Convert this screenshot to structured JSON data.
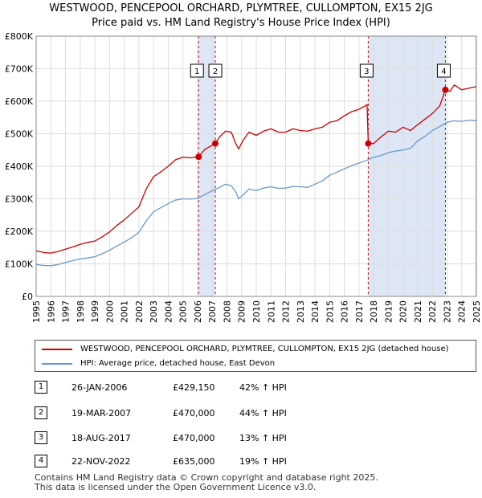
{
  "title_line1": "WESTWOOD, PENCEPOOL ORCHARD, PLYMTREE, CULLOMPTON, EX15 2JG",
  "title_line2": "Price paid vs. HM Land Registry's House Price Index (HPI)",
  "colors": {
    "property": "#cc0000",
    "hpi": "#6699cc",
    "shade": "#dde6f5",
    "vline": "#cc0000"
  },
  "chart_data": {
    "type": "line",
    "title": "Price paid vs. HM Land Registry's House Price Index (HPI)",
    "xlabel": "",
    "ylabel": "",
    "xlim": [
      1995,
      2025
    ],
    "ylim": [
      0,
      800000
    ],
    "yticks": [
      {
        "value": 0,
        "label": "£0"
      },
      {
        "value": 100000,
        "label": "£100K"
      },
      {
        "value": 200000,
        "label": "£200K"
      },
      {
        "value": 300000,
        "label": "£300K"
      },
      {
        "value": 400000,
        "label": "£400K"
      },
      {
        "value": 500000,
        "label": "£500K"
      },
      {
        "value": 600000,
        "label": "£600K"
      },
      {
        "value": 700000,
        "label": "£700K"
      },
      {
        "value": 800000,
        "label": "£800K"
      }
    ],
    "xticks": [
      "1995",
      "1996",
      "1997",
      "1998",
      "1999",
      "2000",
      "2001",
      "2002",
      "2003",
      "2004",
      "2005",
      "2006",
      "2007",
      "2008",
      "2009",
      "2010",
      "2011",
      "2012",
      "2013",
      "2014",
      "2015",
      "2016",
      "2017",
      "2018",
      "2019",
      "2020",
      "2021",
      "2022",
      "2023",
      "2024",
      "2025"
    ],
    "shaded_ranges": [
      [
        2006.07,
        2007.21
      ],
      [
        2017.63,
        2022.89
      ]
    ],
    "series": [
      {
        "name": "WESTWOOD, PENCEPOOL ORCHARD, PLYMTREE, CULLOMPTON, EX15 2JG (detached house)",
        "color": "#cc0000",
        "x": [
          1995.0,
          1995.5,
          1996.0,
          1996.5,
          1997.0,
          1997.5,
          1998.0,
          1998.5,
          1999.0,
          1999.5,
          2000.0,
          2000.5,
          2001.0,
          2001.5,
          2002.0,
          2002.5,
          2003.0,
          2003.5,
          2004.0,
          2004.5,
          2005.0,
          2005.5,
          2006.07,
          2006.5,
          2007.21,
          2007.5,
          2007.9,
          2008.3,
          2008.6,
          2008.8,
          2009.1,
          2009.5,
          2010.0,
          2010.5,
          2011.0,
          2011.5,
          2012.0,
          2012.5,
          2013.0,
          2013.5,
          2014.0,
          2014.5,
          2015.0,
          2015.5,
          2016.0,
          2016.5,
          2017.0,
          2017.4,
          2017.55,
          2017.63,
          2018.0,
          2018.5,
          2019.0,
          2019.5,
          2020.0,
          2020.5,
          2021.0,
          2021.5,
          2022.0,
          2022.5,
          2022.89,
          2023.2,
          2023.5,
          2024.0,
          2024.5,
          2025.0
        ],
        "values": [
          140000,
          135000,
          133000,
          138000,
          145000,
          152000,
          160000,
          166000,
          170000,
          183000,
          198000,
          218000,
          235000,
          255000,
          275000,
          330000,
          368000,
          383000,
          400000,
          420000,
          428000,
          426000,
          429150,
          452000,
          470000,
          490000,
          508000,
          505000,
          470000,
          453000,
          480000,
          505000,
          495000,
          508000,
          515000,
          505000,
          505000,
          515000,
          510000,
          508000,
          515000,
          520000,
          535000,
          540000,
          555000,
          568000,
          575000,
          585000,
          590000,
          470000,
          470000,
          490000,
          508000,
          505000,
          520000,
          510000,
          528000,
          545000,
          562000,
          585000,
          635000,
          630000,
          650000,
          635000,
          640000,
          645000
        ]
      },
      {
        "name": "HPI: Average price, detached house, East Devon",
        "color": "#6699cc",
        "x": [
          1995.0,
          1995.5,
          1996.0,
          1996.5,
          1997.0,
          1997.5,
          1998.0,
          1998.5,
          1999.0,
          1999.5,
          2000.0,
          2000.5,
          2001.0,
          2001.5,
          2002.0,
          2002.5,
          2003.0,
          2003.5,
          2004.0,
          2004.5,
          2005.0,
          2005.5,
          2006.0,
          2006.5,
          2007.0,
          2007.5,
          2007.9,
          2008.3,
          2008.6,
          2008.8,
          2009.1,
          2009.5,
          2010.0,
          2010.5,
          2011.0,
          2011.5,
          2012.0,
          2012.5,
          2013.0,
          2013.5,
          2014.0,
          2014.5,
          2015.0,
          2015.5,
          2016.0,
          2016.5,
          2017.0,
          2017.5,
          2018.0,
          2018.5,
          2019.0,
          2019.5,
          2020.0,
          2020.5,
          2021.0,
          2021.5,
          2022.0,
          2022.5,
          2023.0,
          2023.5,
          2024.0,
          2024.5,
          2025.0
        ],
        "values": [
          98000,
          95000,
          94000,
          98000,
          104000,
          110000,
          115000,
          118000,
          122000,
          131000,
          142000,
          155000,
          167000,
          180000,
          197000,
          232000,
          260000,
          273000,
          285000,
          296000,
          300000,
          299000,
          301000,
          313000,
          325000,
          335000,
          345000,
          340000,
          322000,
          300000,
          312000,
          330000,
          325000,
          333000,
          337000,
          332000,
          333000,
          338000,
          337000,
          335000,
          345000,
          355000,
          372000,
          382000,
          392000,
          402000,
          410000,
          418000,
          428000,
          433000,
          442000,
          447000,
          450000,
          455000,
          478000,
          492000,
          510000,
          522000,
          535000,
          540000,
          538000,
          542000,
          540000
        ]
      }
    ],
    "sales": [
      {
        "num": "1",
        "x": 2006.07,
        "value": 429150
      },
      {
        "num": "2",
        "x": 2007.21,
        "value": 470000
      },
      {
        "num": "3",
        "x": 2017.63,
        "value": 470000
      },
      {
        "num": "4",
        "x": 2022.89,
        "value": 635000
      }
    ]
  },
  "legend": {
    "property_label": "WESTWOOD, PENCEPOOL ORCHARD, PLYMTREE, CULLOMPTON, EX15 2JG (detached house)",
    "hpi_label": "HPI: Average price, detached house, East Devon"
  },
  "sales_table": [
    {
      "num": "1",
      "date": "26-JAN-2006",
      "price": "£429,150",
      "hpi": "42% ↑ HPI"
    },
    {
      "num": "2",
      "date": "19-MAR-2007",
      "price": "£470,000",
      "hpi": "44% ↑ HPI"
    },
    {
      "num": "3",
      "date": "18-AUG-2017",
      "price": "£470,000",
      "hpi": "13% ↑ HPI"
    },
    {
      "num": "4",
      "date": "22-NOV-2022",
      "price": "£635,000",
      "hpi": "19% ↑ HPI"
    }
  ],
  "footer_line1": "Contains HM Land Registry data © Crown copyright and database right 2025.",
  "footer_line2": "This data is licensed under the Open Government Licence v3.0."
}
